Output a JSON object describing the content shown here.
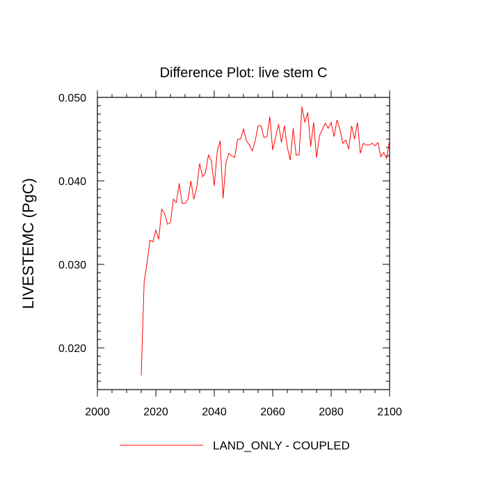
{
  "chart_data": {
    "type": "line",
    "title": "Difference Plot: live stem C",
    "xlabel": "",
    "ylabel": "LIVESTEMC  (PgC)",
    "xlim": [
      2000,
      2100
    ],
    "ylim": [
      0.015,
      0.05
    ],
    "xticks": [
      2000,
      2020,
      2040,
      2060,
      2080,
      2100
    ],
    "xtick_labels": [
      "2000",
      "2020",
      "2040",
      "2060",
      "2080",
      "2100"
    ],
    "yticks": [
      0.02,
      0.03,
      0.04,
      0.05
    ],
    "ytick_labels": [
      "0.020",
      "0.030",
      "0.040",
      "0.050"
    ],
    "grid": false,
    "legend_position": "bottom-center",
    "series": [
      {
        "name": "LAND_ONLY - COUPLED",
        "color": "#ff0000",
        "x": [
          2015,
          2016,
          2017,
          2018,
          2019,
          2020,
          2021,
          2022,
          2023,
          2024,
          2025,
          2026,
          2027,
          2028,
          2029,
          2030,
          2031,
          2032,
          2033,
          2034,
          2035,
          2036,
          2037,
          2038,
          2039,
          2040,
          2041,
          2042,
          2043,
          2044,
          2045,
          2046,
          2047,
          2048,
          2049,
          2050,
          2051,
          2052,
          2053,
          2054,
          2055,
          2056,
          2057,
          2058,
          2059,
          2060,
          2061,
          2062,
          2063,
          2064,
          2065,
          2066,
          2067,
          2068,
          2069,
          2070,
          2071,
          2072,
          2073,
          2074,
          2075,
          2076,
          2077,
          2078,
          2079,
          2080,
          2081,
          2082,
          2083,
          2084,
          2085,
          2086,
          2087,
          2088,
          2089,
          2090,
          2091,
          2092,
          2093,
          2094,
          2095,
          2096,
          2097,
          2098,
          2099,
          2100
        ],
        "values": [
          0.0167,
          0.0279,
          0.0302,
          0.0329,
          0.0327,
          0.0341,
          0.033,
          0.0366,
          0.0361,
          0.0348,
          0.035,
          0.0378,
          0.0374,
          0.0397,
          0.0373,
          0.0373,
          0.0378,
          0.04,
          0.0378,
          0.0392,
          0.0421,
          0.0405,
          0.041,
          0.0431,
          0.0424,
          0.0394,
          0.0435,
          0.0448,
          0.0379,
          0.0422,
          0.0433,
          0.043,
          0.0428,
          0.045,
          0.045,
          0.0462,
          0.0448,
          0.0443,
          0.0436,
          0.0448,
          0.0466,
          0.0466,
          0.0452,
          0.0453,
          0.0477,
          0.0437,
          0.0453,
          0.0468,
          0.0446,
          0.0466,
          0.044,
          0.0425,
          0.0463,
          0.0431,
          0.0431,
          0.0489,
          0.047,
          0.0482,
          0.0441,
          0.047,
          0.0428,
          0.0454,
          0.0462,
          0.0469,
          0.0463,
          0.047,
          0.0453,
          0.0473,
          0.0462,
          0.0445,
          0.0449,
          0.0438,
          0.0466,
          0.045,
          0.047,
          0.0433,
          0.0445,
          0.0443,
          0.0443,
          0.0445,
          0.0442,
          0.0446,
          0.0429,
          0.0434,
          0.0427,
          0.0449
        ]
      }
    ]
  }
}
